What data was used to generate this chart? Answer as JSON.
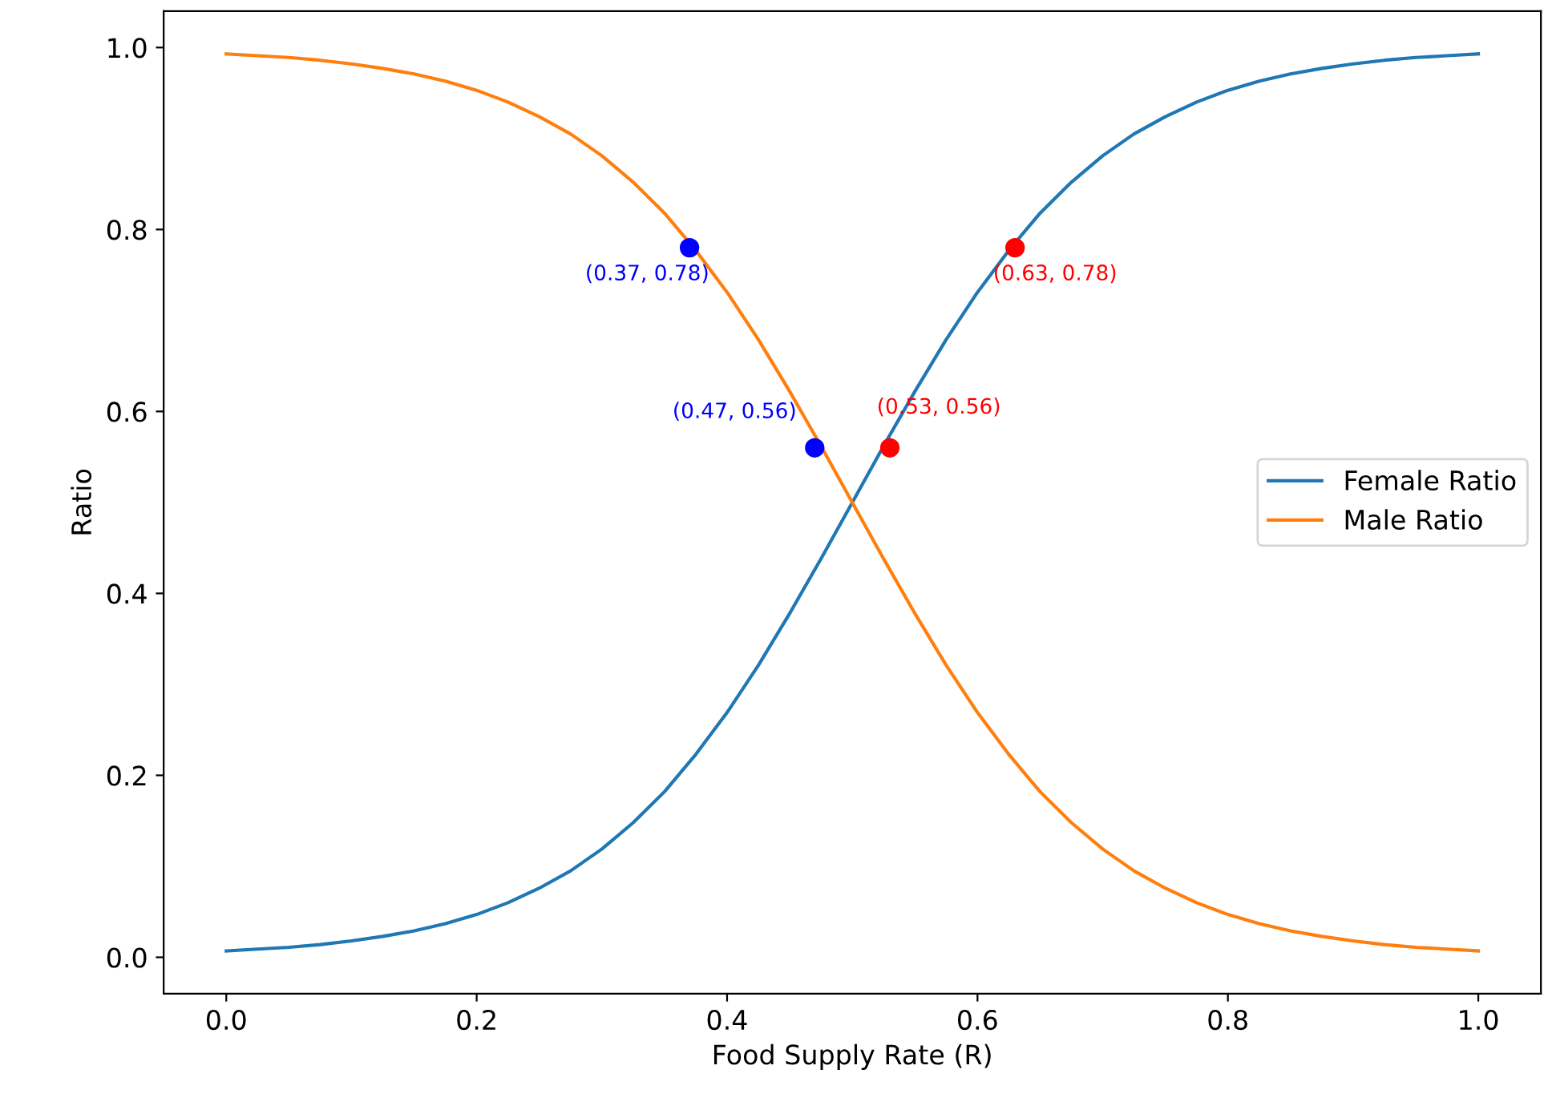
{
  "chart_data": {
    "type": "line",
    "xlabel": "Food Supply Rate (R)",
    "ylabel": "Ratio",
    "x": [
      0,
      0.025,
      0.05,
      0.075,
      0.1,
      0.125,
      0.15,
      0.175,
      0.2,
      0.225,
      0.25,
      0.275,
      0.3,
      0.325,
      0.35,
      0.375,
      0.4,
      0.425,
      0.45,
      0.475,
      0.5,
      0.525,
      0.55,
      0.575,
      0.6,
      0.625,
      0.65,
      0.675,
      0.7,
      0.725,
      0.75,
      0.775,
      0.8,
      0.825,
      0.85,
      0.875,
      0.9,
      0.925,
      0.95,
      0.975,
      1
    ],
    "series": [
      {
        "name": "Female Ratio",
        "color": "#1f77b4",
        "values": [
          0.007,
          0.009,
          0.011,
          0.014,
          0.018,
          0.023,
          0.029,
          0.037,
          0.047,
          0.06,
          0.076,
          0.095,
          0.119,
          0.148,
          0.182,
          0.223,
          0.269,
          0.321,
          0.378,
          0.438,
          0.5,
          0.562,
          0.622,
          0.679,
          0.731,
          0.777,
          0.818,
          0.852,
          0.881,
          0.905,
          0.924,
          0.94,
          0.953,
          0.963,
          0.971,
          0.977,
          0.982,
          0.986,
          0.989,
          0.991,
          0.993
        ]
      },
      {
        "name": "Male Ratio",
        "color": "#ff7f0e",
        "values": [
          0.993,
          0.991,
          0.989,
          0.986,
          0.982,
          0.977,
          0.971,
          0.963,
          0.953,
          0.94,
          0.924,
          0.905,
          0.881,
          0.852,
          0.818,
          0.777,
          0.731,
          0.679,
          0.622,
          0.562,
          0.5,
          0.438,
          0.378,
          0.321,
          0.269,
          0.223,
          0.182,
          0.148,
          0.119,
          0.095,
          0.076,
          0.06,
          0.047,
          0.037,
          0.029,
          0.023,
          0.018,
          0.014,
          0.011,
          0.009,
          0.007
        ]
      },
      {
        "type": "scatter",
        "color": "#0000ff",
        "x": [
          0.37,
          0.47
        ],
        "values": [
          0.78,
          0.56
        ]
      },
      {
        "type": "scatter",
        "color": "#ff0000",
        "x": [
          0.53,
          0.63
        ],
        "values": [
          0.56,
          0.78
        ]
      }
    ],
    "annotations": [
      {
        "text": "(0.37, 0.78)",
        "x": 0.37,
        "y": 0.78
      },
      {
        "text": "(0.47, 0.56)",
        "x": 0.47,
        "y": 0.56
      },
      {
        "text": "(0.53, 0.56)",
        "x": 0.53,
        "y": 0.56
      },
      {
        "text": "(0.63, 0.78)",
        "x": 0.63,
        "y": 0.78
      }
    ],
    "xlim": [
      -0.05,
      1.05
    ],
    "ylim": [
      -0.04,
      1.04
    ],
    "xticks": [
      {
        "value": 0,
        "label": "0.0"
      },
      0.2,
      0.4,
      0.6,
      0.8,
      {
        "value": 1,
        "label": "1.0"
      }
    ],
    "yticks": [
      {
        "value": 0,
        "label": "0.0"
      },
      0.2,
      0.4,
      0.6,
      0.8,
      {
        "value": 1,
        "label": "1.0"
      }
    ],
    "legend": "center right",
    "grid": false
  }
}
